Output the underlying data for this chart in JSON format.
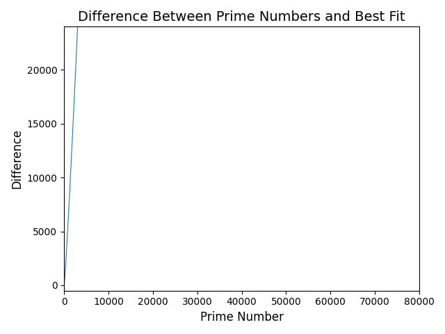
{
  "title": "Difference Between Prime Numbers and Best Fit",
  "xlabel": "Prime Number",
  "ylabel": "Difference",
  "line_color": "#1f77b4",
  "linewidth": 0.8,
  "figsize": [
    6.4,
    4.8
  ],
  "dpi": 100,
  "n_primes": 80000,
  "xlim": [
    0,
    80000
  ],
  "ylim": [
    -500,
    24000
  ],
  "yticks": [
    0,
    5000,
    10000,
    15000,
    20000
  ],
  "xticks": [
    0,
    10000,
    20000,
    30000,
    40000,
    50000,
    60000,
    70000,
    80000
  ]
}
